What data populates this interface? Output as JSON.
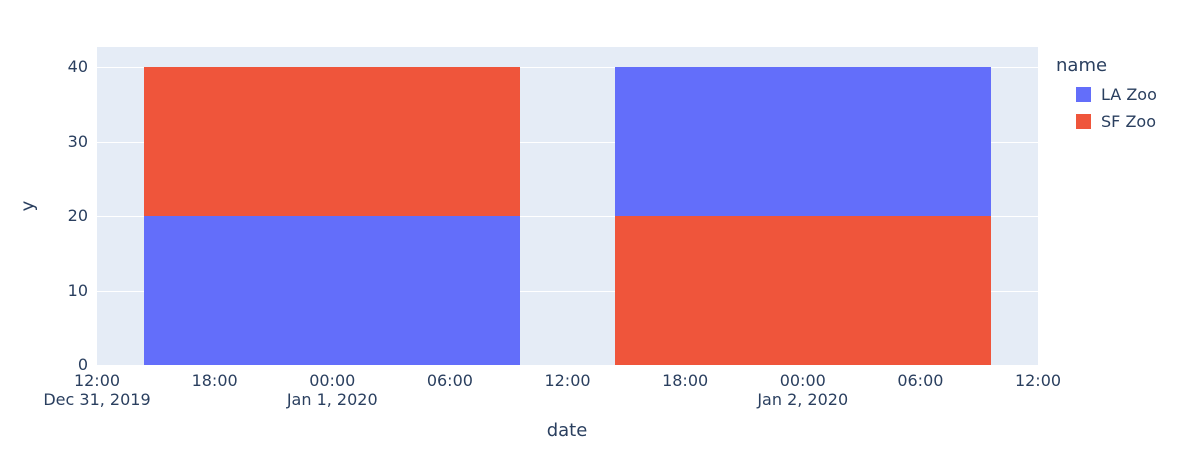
{
  "figure": {
    "background": "#ffffff",
    "plot_background": "#E5ECF6",
    "grid_color": "#ffffff",
    "text_color": "#2a3f5f"
  },
  "chart_data": {
    "type": "bar",
    "stacked": true,
    "title": "",
    "xlabel": "date",
    "ylabel": "y",
    "ylim": [
      0,
      42.7
    ],
    "y_ticks": [
      0,
      10,
      20,
      30,
      40
    ],
    "grid": true,
    "legend_position": "right-top",
    "x_axis": {
      "start_hour": 0,
      "end_hour": 48,
      "ticks": [
        {
          "hour": 0,
          "label": "12:00"
        },
        {
          "hour": 6,
          "label": "18:00"
        },
        {
          "hour": 12,
          "label": "00:00"
        },
        {
          "hour": 18,
          "label": "06:00"
        },
        {
          "hour": 24,
          "label": "12:00"
        },
        {
          "hour": 30,
          "label": "18:00"
        },
        {
          "hour": 36,
          "label": "00:00"
        },
        {
          "hour": 42,
          "label": "06:00"
        },
        {
          "hour": 48,
          "label": "12:00"
        }
      ],
      "date_labels": [
        {
          "hour": 0,
          "label": "Dec 31, 2019"
        },
        {
          "hour": 12,
          "label": "Jan 1, 2020"
        },
        {
          "hour": 36,
          "label": "Jan 2, 2020"
        }
      ]
    },
    "categories": [
      "Jan 1, 2020",
      "Jan 2, 2020"
    ],
    "series": [
      {
        "name": "LA Zoo",
        "color": "#636EFA",
        "values": [
          20,
          20
        ]
      },
      {
        "name": "SF Zoo",
        "color": "#EF553B",
        "values": [
          20,
          20
        ]
      }
    ],
    "bars": [
      {
        "center_hour": 12,
        "width_hours": 19.2,
        "stack_bottom_to_top": [
          {
            "name": "LA Zoo",
            "value": 20
          },
          {
            "name": "SF Zoo",
            "value": 20
          }
        ]
      },
      {
        "center_hour": 36,
        "width_hours": 19.2,
        "stack_bottom_to_top": [
          {
            "name": "SF Zoo",
            "value": 20
          },
          {
            "name": "LA Zoo",
            "value": 20
          }
        ]
      }
    ],
    "legend": {
      "title": "name",
      "items": [
        {
          "label": "LA Zoo",
          "color": "#636EFA"
        },
        {
          "label": "SF Zoo",
          "color": "#EF553B"
        }
      ]
    }
  }
}
